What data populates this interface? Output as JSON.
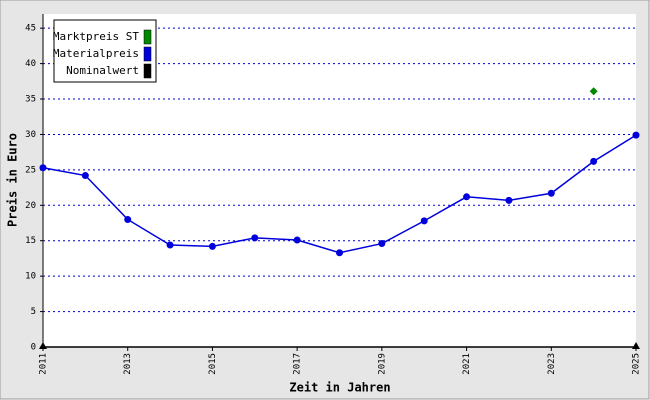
{
  "chart_data": {
    "type": "line",
    "x_label": "Zeit in Jahren",
    "y_label": "Preis in Euro",
    "xlim": [
      2011,
      2025
    ],
    "xticks": [
      2011,
      2013,
      2015,
      2017,
      2019,
      2021,
      2023,
      2025
    ],
    "ylim": [
      0,
      47
    ],
    "yticks": [
      0,
      5,
      10,
      15,
      20,
      25,
      30,
      35,
      40,
      45
    ],
    "grid": true,
    "legend": "top-left",
    "series": [
      {
        "name": "Marktpreis ST",
        "color": "#008800",
        "marker": "diamond",
        "line": false,
        "x": [
          2024
        ],
        "values": [
          36.1
        ]
      },
      {
        "name": "Materialpreis",
        "color": "#0000dd",
        "marker": "circle",
        "line": true,
        "x": [
          2011,
          2012,
          2013,
          2014,
          2015,
          2016,
          2017,
          2018,
          2019,
          2020,
          2021,
          2022,
          2023,
          2024,
          2025
        ],
        "values": [
          25.3,
          24.2,
          18.0,
          14.4,
          14.2,
          15.4,
          15.1,
          13.3,
          14.6,
          17.8,
          21.2,
          20.7,
          21.7,
          26.2,
          29.9
        ]
      },
      {
        "name": "Nominalwert",
        "color": "#000000",
        "marker": "triangle",
        "line": true,
        "x": [
          2011,
          2025
        ],
        "values": [
          0,
          0
        ]
      }
    ]
  }
}
